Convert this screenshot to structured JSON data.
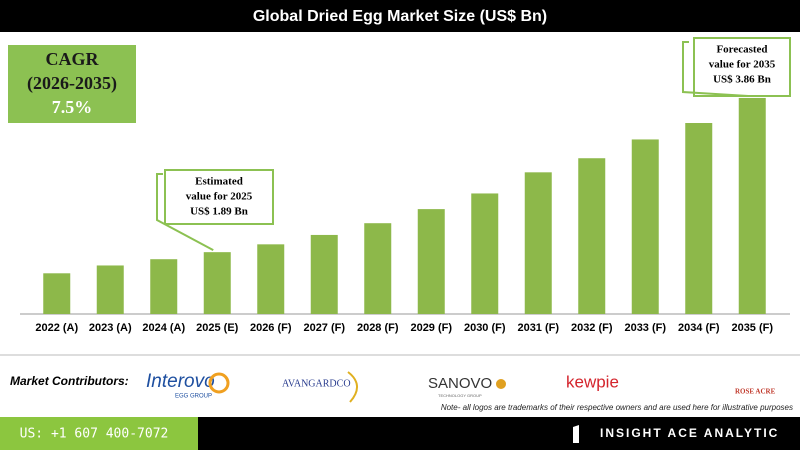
{
  "chart_data": {
    "type": "bar",
    "title": "Global Dried Egg Market Size (US$ Bn)",
    "categories": [
      "2022 (A)",
      "2023 (A)",
      "2024 (A)",
      "2025 (E)",
      "2026 (F)",
      "2027 (F)",
      "2028 (F)",
      "2029 (F)",
      "2030 (F)",
      "2031 (F)",
      "2032 (F)",
      "2033 (F)",
      "2034 (F)",
      "2035 (F)"
    ],
    "values": [
      1.62,
      1.72,
      1.8,
      1.89,
      1.99,
      2.11,
      2.26,
      2.44,
      2.64,
      2.91,
      3.09,
      3.33,
      3.54,
      3.86
    ],
    "color": "#8db84a",
    "ylim": [
      1.1,
      4.0
    ],
    "cagr": [
      "CAGR",
      "(2026-2035)",
      "7.5%"
    ],
    "annotations": [
      {
        "lines": [
          "Estimated",
          "value for 2025",
          "US$ 1.89 Bn"
        ]
      },
      {
        "lines": [
          "Forecasted",
          "value for 2035",
          "US$ 3.86 Bn"
        ]
      }
    ]
  },
  "contributors": {
    "label": "Market Contributors:",
    "logos": [
      "Interovo",
      "EGG GROUP",
      "AVANGARDCO",
      "SANOVO",
      "TECHNOLOGY GROUP",
      "kewpie",
      "ROSE ACRE"
    ],
    "note": "Note- all logos are trademarks of their respective owners and are used here for illustrative purposes"
  },
  "footer": {
    "phone": "US: +1 607 400-7072",
    "brand": "INSIGHT ACE ANALYTIC"
  }
}
